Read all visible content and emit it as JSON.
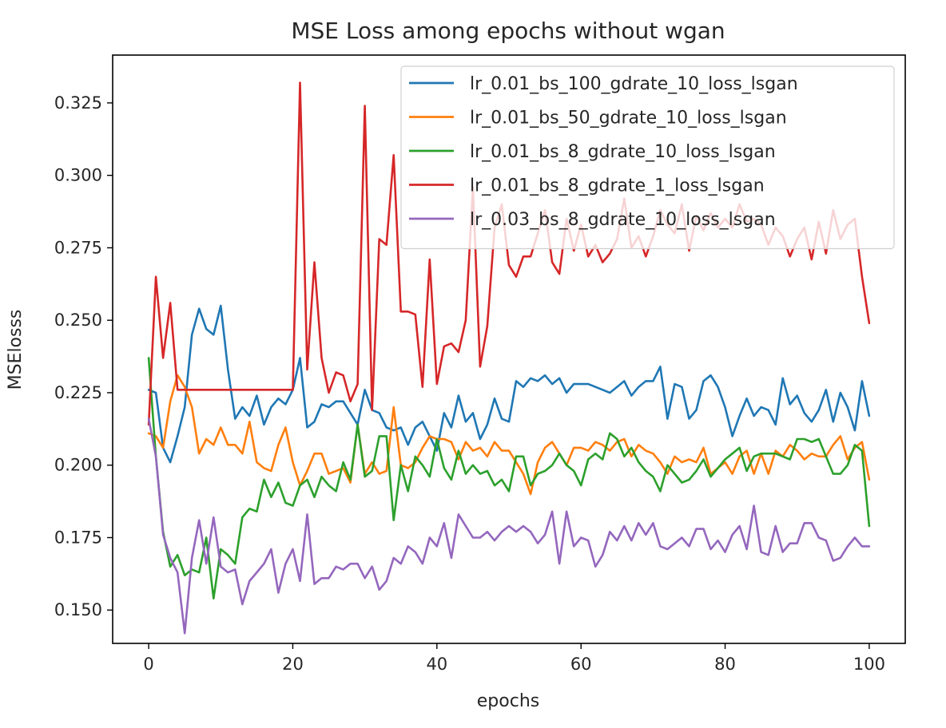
{
  "chart_data": {
    "type": "line",
    "title": "MSE Loss among epochs without wgan",
    "xlabel": "epochs",
    "ylabel": "MSElosss",
    "xlim": [
      -5,
      105
    ],
    "ylim": [
      0.1385,
      0.3415
    ],
    "xticks": [
      0,
      20,
      40,
      60,
      80,
      100
    ],
    "yticks": [
      0.15,
      0.175,
      0.2,
      0.225,
      0.25,
      0.275,
      0.3,
      0.325
    ],
    "ytick_labels": [
      "0.150",
      "0.175",
      "0.200",
      "0.225",
      "0.250",
      "0.275",
      "0.300",
      "0.325"
    ],
    "grid": false,
    "legend_position": "top-right",
    "x": [
      0,
      1,
      2,
      3,
      4,
      5,
      6,
      7,
      8,
      9,
      10,
      11,
      12,
      13,
      14,
      15,
      16,
      17,
      18,
      19,
      20,
      21,
      22,
      23,
      24,
      25,
      26,
      27,
      28,
      29,
      30,
      31,
      32,
      33,
      34,
      35,
      36,
      37,
      38,
      39,
      40,
      41,
      42,
      43,
      44,
      45,
      46,
      47,
      48,
      49,
      50,
      51,
      52,
      53,
      54,
      55,
      56,
      57,
      58,
      59,
      60,
      61,
      62,
      63,
      64,
      65,
      66,
      67,
      68,
      69,
      70,
      71,
      72,
      73,
      74,
      75,
      76,
      77,
      78,
      79,
      80,
      81,
      82,
      83,
      84,
      85,
      86,
      87,
      88,
      89,
      90,
      91,
      92,
      93,
      94,
      95,
      96,
      97,
      98,
      99,
      100
    ],
    "series": [
      {
        "name": "lr_0.01_bs_100_gdrate_10_loss_lsgan",
        "color": "#1f77b4",
        "values": [
          0.226,
          0.225,
          0.206,
          0.201,
          0.21,
          0.22,
          0.245,
          0.254,
          0.247,
          0.245,
          0.255,
          0.233,
          0.216,
          0.22,
          0.217,
          0.224,
          0.214,
          0.22,
          0.223,
          0.221,
          0.226,
          0.237,
          0.213,
          0.215,
          0.221,
          0.22,
          0.222,
          0.222,
          0.218,
          0.214,
          0.226,
          0.219,
          0.218,
          0.213,
          0.212,
          0.213,
          0.207,
          0.213,
          0.215,
          0.21,
          0.205,
          0.218,
          0.213,
          0.224,
          0.215,
          0.218,
          0.209,
          0.214,
          0.223,
          0.216,
          0.215,
          0.229,
          0.227,
          0.23,
          0.229,
          0.231,
          0.228,
          0.23,
          0.225,
          0.228,
          0.228,
          0.228,
          0.227,
          0.226,
          0.225,
          0.227,
          0.229,
          0.224,
          0.227,
          0.229,
          0.229,
          0.234,
          0.216,
          0.228,
          0.227,
          0.216,
          0.219,
          0.229,
          0.231,
          0.227,
          0.22,
          0.21,
          0.217,
          0.223,
          0.217,
          0.22,
          0.219,
          0.214,
          0.23,
          0.221,
          0.224,
          0.218,
          0.215,
          0.219,
          0.226,
          0.215,
          0.225,
          0.22,
          0.212,
          0.229,
          0.217
        ]
      },
      {
        "name": "lr_0.01_bs_50_gdrate_10_loss_lsgan",
        "color": "#ff7f0e",
        "values": [
          0.211,
          0.21,
          0.206,
          0.222,
          0.231,
          0.227,
          0.22,
          0.204,
          0.209,
          0.207,
          0.213,
          0.207,
          0.207,
          0.204,
          0.215,
          0.201,
          0.199,
          0.198,
          0.207,
          0.213,
          0.201,
          0.193,
          0.198,
          0.204,
          0.204,
          0.197,
          0.198,
          0.199,
          0.194,
          0.214,
          0.197,
          0.201,
          0.197,
          0.198,
          0.22,
          0.2,
          0.199,
          0.201,
          0.206,
          0.21,
          0.209,
          0.209,
          0.208,
          0.202,
          0.208,
          0.205,
          0.206,
          0.203,
          0.208,
          0.205,
          0.205,
          0.201,
          0.197,
          0.19,
          0.201,
          0.206,
          0.208,
          0.204,
          0.2,
          0.206,
          0.206,
          0.205,
          0.208,
          0.207,
          0.205,
          0.208,
          0.209,
          0.203,
          0.207,
          0.205,
          0.204,
          0.201,
          0.197,
          0.203,
          0.201,
          0.202,
          0.201,
          0.206,
          0.197,
          0.199,
          0.201,
          0.197,
          0.203,
          0.205,
          0.197,
          0.204,
          0.197,
          0.205,
          0.203,
          0.207,
          0.205,
          0.202,
          0.204,
          0.203,
          0.203,
          0.207,
          0.21,
          0.202,
          0.206,
          0.208,
          0.195
        ]
      },
      {
        "name": "lr_0.01_bs_8_gdrate_10_loss_lsgan",
        "color": "#2ca02c",
        "values": [
          0.237,
          0.203,
          0.177,
          0.165,
          0.169,
          0.162,
          0.164,
          0.163,
          0.175,
          0.154,
          0.171,
          0.169,
          0.166,
          0.182,
          0.185,
          0.184,
          0.195,
          0.189,
          0.194,
          0.187,
          0.186,
          0.193,
          0.195,
          0.189,
          0.196,
          0.193,
          0.191,
          0.201,
          0.195,
          0.214,
          0.196,
          0.198,
          0.21,
          0.21,
          0.181,
          0.2,
          0.191,
          0.203,
          0.2,
          0.196,
          0.209,
          0.199,
          0.195,
          0.205,
          0.197,
          0.2,
          0.197,
          0.198,
          0.193,
          0.195,
          0.191,
          0.203,
          0.203,
          0.193,
          0.197,
          0.198,
          0.2,
          0.204,
          0.2,
          0.198,
          0.193,
          0.202,
          0.204,
          0.202,
          0.211,
          0.209,
          0.203,
          0.206,
          0.201,
          0.198,
          0.196,
          0.191,
          0.2,
          0.197,
          0.194,
          0.195,
          0.198,
          0.202,
          0.196,
          0.199,
          0.202,
          0.204,
          0.206,
          0.198,
          0.203,
          0.204,
          0.204,
          0.204,
          0.203,
          0.202,
          0.209,
          0.209,
          0.208,
          0.209,
          0.203,
          0.197,
          0.197,
          0.2,
          0.207,
          0.205,
          0.179
        ]
      },
      {
        "name": "lr_0.01_bs_8_gdrate_1_loss_lsgan",
        "color": "#d62728",
        "values": [
          0.214,
          0.265,
          0.237,
          0.256,
          0.226,
          0.226,
          0.226,
          0.226,
          0.226,
          0.226,
          0.226,
          0.226,
          0.226,
          0.226,
          0.226,
          0.226,
          0.226,
          0.226,
          0.226,
          0.226,
          0.226,
          0.332,
          0.233,
          0.27,
          0.237,
          0.225,
          0.232,
          0.231,
          0.222,
          0.228,
          0.324,
          0.219,
          0.278,
          0.276,
          0.307,
          0.253,
          0.253,
          0.252,
          0.227,
          0.271,
          0.228,
          0.241,
          0.242,
          0.239,
          0.25,
          0.296,
          0.234,
          0.248,
          0.282,
          0.29,
          0.269,
          0.265,
          0.272,
          0.272,
          0.28,
          0.288,
          0.27,
          0.266,
          0.285,
          0.274,
          0.283,
          0.272,
          0.276,
          0.27,
          0.273,
          0.278,
          0.292,
          0.275,
          0.279,
          0.272,
          0.279,
          0.288,
          0.283,
          0.28,
          0.29,
          0.274,
          0.286,
          0.281,
          0.287,
          0.282,
          0.285,
          0.282,
          0.29,
          0.284,
          0.285,
          0.283,
          0.276,
          0.282,
          0.279,
          0.272,
          0.278,
          0.282,
          0.271,
          0.284,
          0.273,
          0.288,
          0.278,
          0.283,
          0.285,
          0.265,
          0.249
        ]
      },
      {
        "name": "lr_0.03_bs_8_gdrate_10_loss_lsgan",
        "color": "#9467bd",
        "values": [
          0.216,
          0.203,
          0.176,
          0.168,
          0.163,
          0.142,
          0.168,
          0.181,
          0.166,
          0.182,
          0.165,
          0.163,
          0.164,
          0.152,
          0.16,
          0.163,
          0.166,
          0.171,
          0.156,
          0.166,
          0.171,
          0.16,
          0.183,
          0.159,
          0.161,
          0.161,
          0.165,
          0.164,
          0.166,
          0.166,
          0.161,
          0.165,
          0.157,
          0.16,
          0.168,
          0.166,
          0.172,
          0.17,
          0.166,
          0.175,
          0.172,
          0.18,
          0.168,
          0.183,
          0.179,
          0.175,
          0.175,
          0.177,
          0.174,
          0.177,
          0.179,
          0.177,
          0.179,
          0.177,
          0.173,
          0.176,
          0.184,
          0.166,
          0.184,
          0.172,
          0.175,
          0.174,
          0.165,
          0.169,
          0.177,
          0.174,
          0.179,
          0.174,
          0.18,
          0.176,
          0.18,
          0.172,
          0.171,
          0.173,
          0.175,
          0.172,
          0.178,
          0.178,
          0.171,
          0.174,
          0.17,
          0.176,
          0.179,
          0.171,
          0.186,
          0.17,
          0.169,
          0.179,
          0.17,
          0.173,
          0.173,
          0.18,
          0.18,
          0.175,
          0.174,
          0.167,
          0.168,
          0.172,
          0.175,
          0.172,
          0.172
        ]
      }
    ]
  }
}
